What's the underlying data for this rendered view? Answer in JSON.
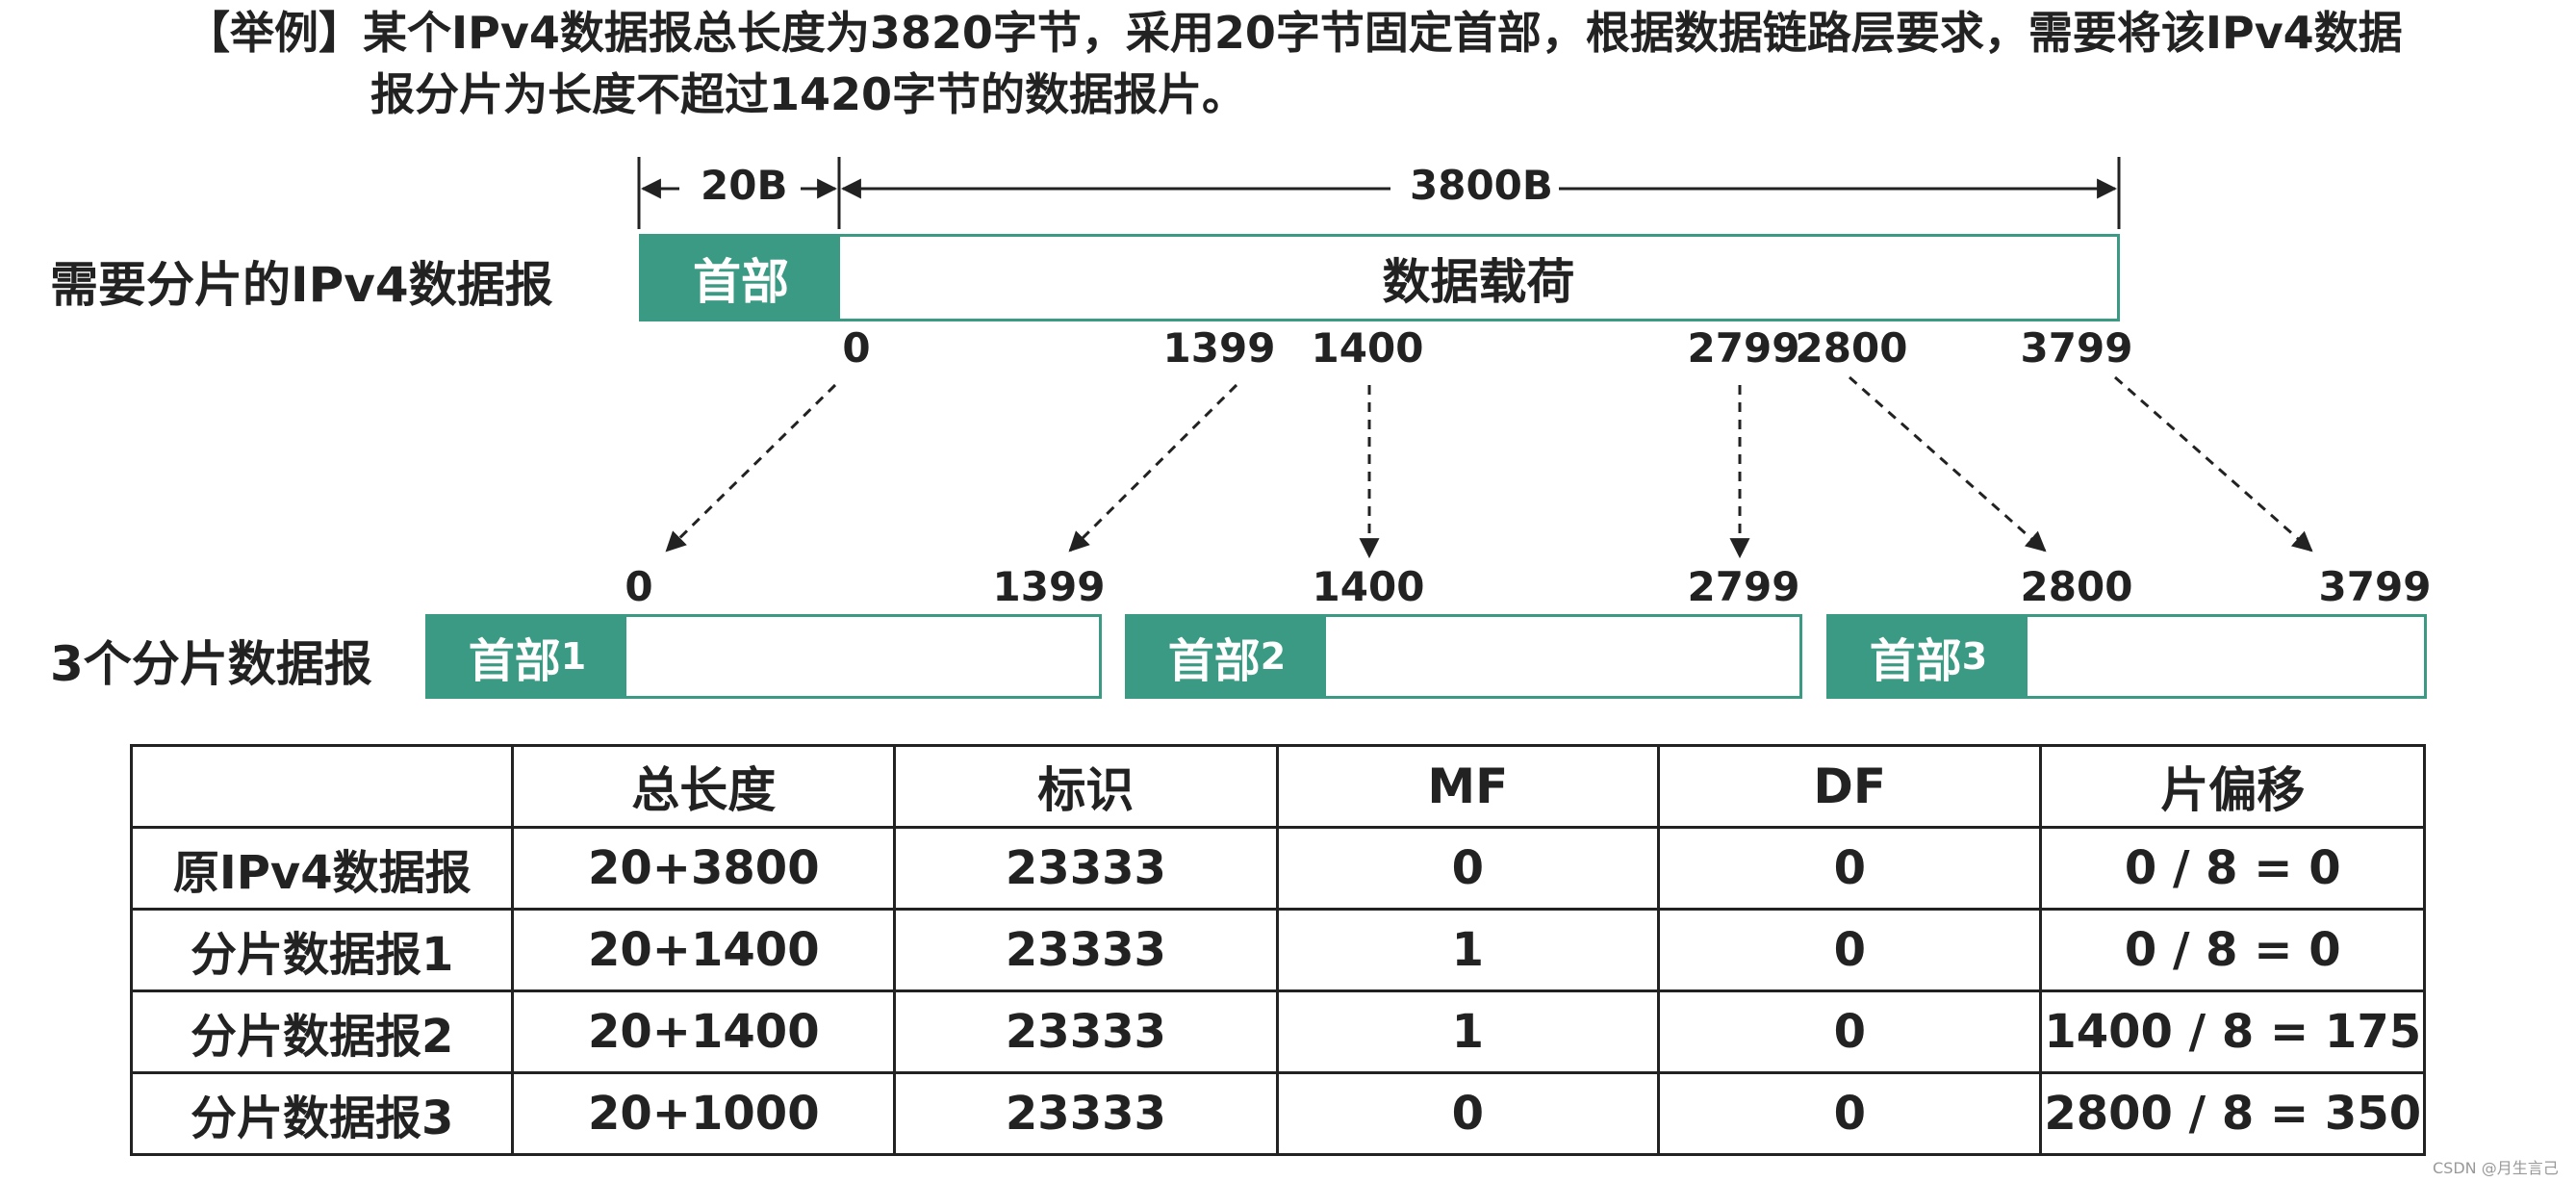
{
  "title": {
    "line1": "【举例】某个IPv4数据报总长度为3820字节，采用20字节固定首部，根据数据链路层要求，需要将该IPv4数据",
    "line2": "报分片为长度不超过1420字节的数据报片。"
  },
  "original": {
    "label": "需要分片的IPv4数据报",
    "header_dim": "20B",
    "payload_dim": "3800B",
    "header_text": "首部",
    "payload_text": "数据载荷",
    "offsets": [
      "0",
      "1399",
      "1400",
      "2799",
      "2800",
      "3799"
    ]
  },
  "fragments": {
    "label": "3个分片数据报",
    "items": [
      {
        "header_text": "首部",
        "index": "1",
        "start": "0",
        "end": "1399"
      },
      {
        "header_text": "首部",
        "index": "2",
        "start": "1400",
        "end": "2799"
      },
      {
        "header_text": "首部",
        "index": "3",
        "start": "2800",
        "end": "3799"
      }
    ]
  },
  "table": {
    "columns": [
      "",
      "总长度",
      "标识",
      "MF",
      "DF",
      "片偏移"
    ],
    "rows": [
      [
        "原IPv4数据报",
        "20+3800",
        "23333",
        "0",
        "0",
        "0 / 8 = 0"
      ],
      [
        "分片数据报1",
        "20+1400",
        "23333",
        "1",
        "0",
        "0 / 8 = 0"
      ],
      [
        "分片数据报2",
        "20+1400",
        "23333",
        "1",
        "0",
        "1400 / 8 = 175"
      ],
      [
        "分片数据报3",
        "20+1000",
        "23333",
        "0",
        "0",
        "2800 / 8 = 350"
      ]
    ]
  },
  "watermark": "CSDN @月生言己",
  "colors": {
    "accent": "#3a9a83",
    "text": "#222222"
  }
}
